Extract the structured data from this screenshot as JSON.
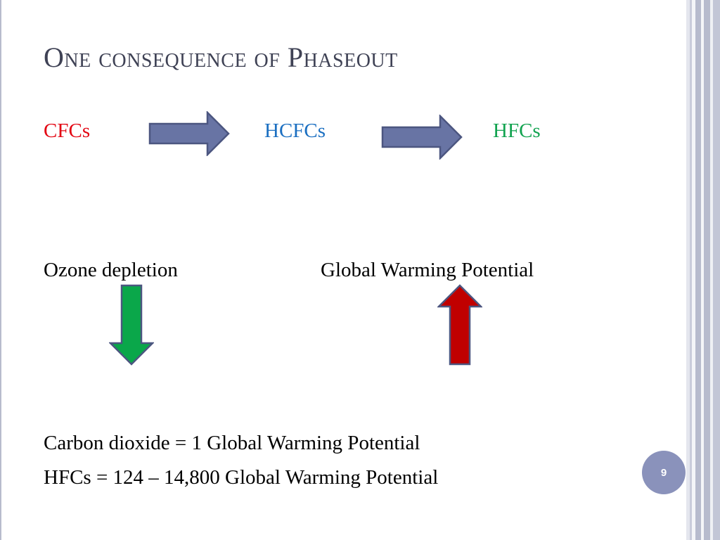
{
  "slide": {
    "title": "One consequence of Phaseout",
    "chain": [
      {
        "label": "CFCs",
        "color": "#e30613"
      },
      {
        "label": "HCFCs",
        "color": "#1b6fc1"
      },
      {
        "label": "HFCs",
        "color": "#12a350"
      }
    ],
    "ozone_label": "Ozone depletion",
    "gwp_label": "Global Warming Potential",
    "arrow_colors": {
      "chain": "#6874a4",
      "down": "#0aa74a",
      "up": "#c00000",
      "outline": "#4c5680"
    },
    "lines": [
      "Carbon dioxide = 1 Global Warming Potential",
      "HFCs = 124 – 14,800 Global Warming Potential"
    ],
    "page_number": "9"
  }
}
